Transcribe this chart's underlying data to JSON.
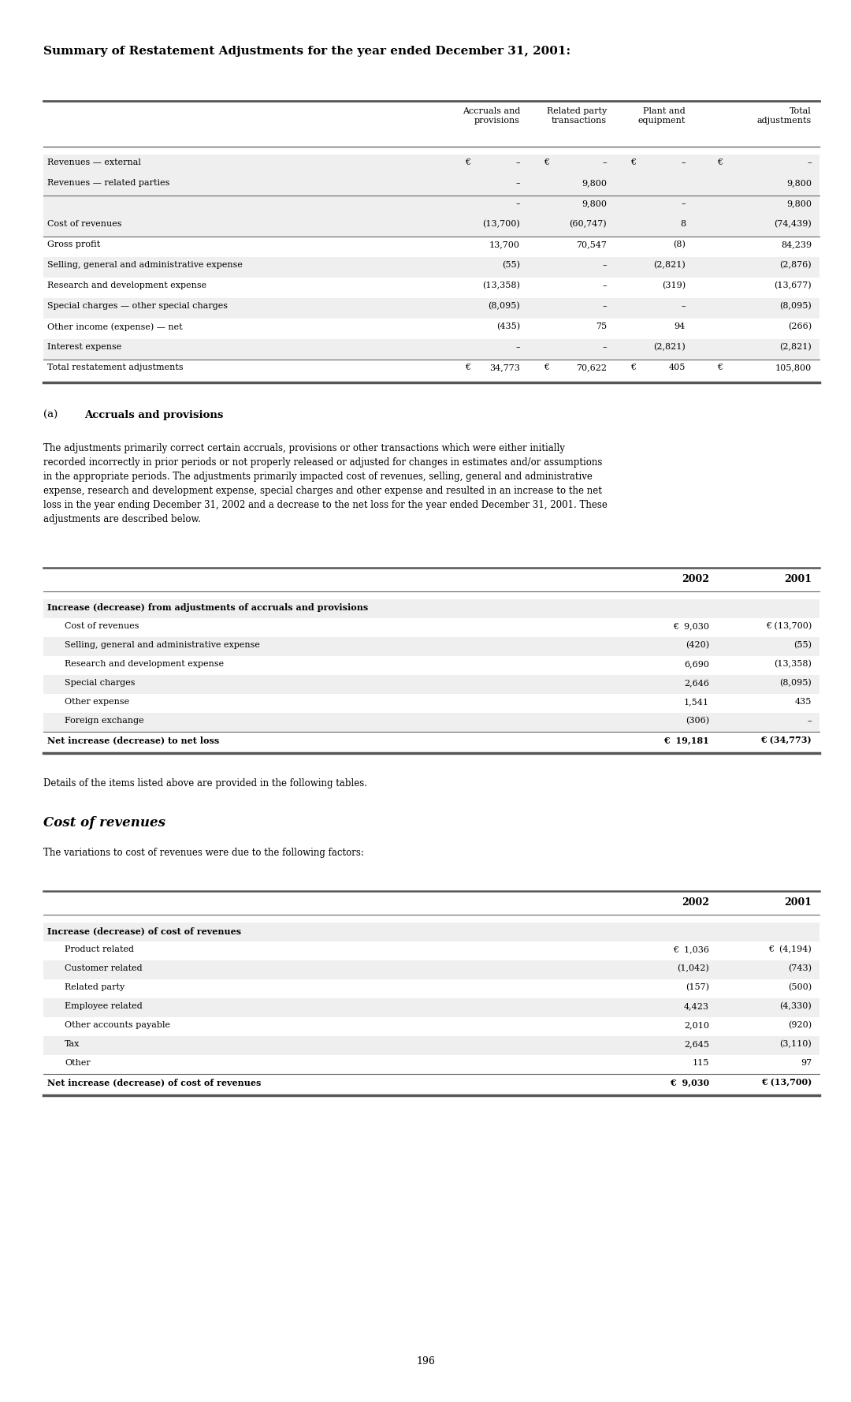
{
  "title": "Summary of Restatement Adjustments for the year ended December 31, 2001:",
  "bg_color": "#ffffff",
  "table1_headers": [
    "",
    "Accruals and\nprovisions",
    "Related party\ntransactions",
    "Plant and\nequipment",
    "Total\nadjustments"
  ],
  "table1_rows": [
    [
      "Revenues — external",
      "€",
      "–",
      "€",
      "–",
      "€",
      "–",
      "€",
      "–"
    ],
    [
      "Revenues — related parties",
      "",
      "–",
      "",
      "9,800",
      "",
      "",
      "",
      "9,800"
    ],
    [
      "",
      "",
      "–",
      "",
      "9,800",
      "",
      "–",
      "",
      "9,800"
    ],
    [
      "Cost of revenues",
      "",
      "(13,700)",
      "",
      "(60,747)",
      "",
      "8",
      "",
      "(74,439)"
    ],
    [
      "Gross profit",
      "",
      "13,700",
      "",
      "70,547",
      "",
      "(8)",
      "",
      "84,239"
    ],
    [
      "Selling, general and administrative expense",
      "",
      "(55)",
      "",
      "–",
      "",
      "(2,821)",
      "",
      "(2,876)"
    ],
    [
      "Research and development expense",
      "",
      "(13,358)",
      "",
      "–",
      "",
      "(319)",
      "",
      "(13,677)"
    ],
    [
      "Special charges — other special charges",
      "",
      "(8,095)",
      "",
      "–",
      "",
      "–",
      "",
      "(8,095)"
    ],
    [
      "Other income (expense) — net",
      "",
      "(435)",
      "",
      "75",
      "",
      "94",
      "",
      "(266)"
    ],
    [
      "Interest expense",
      "",
      "–",
      "",
      "–",
      "",
      "(2,821)",
      "",
      "(2,821)"
    ],
    [
      "Total restatement adjustments",
      "€",
      "34,773",
      "€",
      "70,622",
      "€",
      "405",
      "€",
      "105,800"
    ]
  ],
  "table1_shaded_rows": [
    0,
    1,
    2,
    3,
    5,
    7,
    9
  ],
  "table1_separator_after": [
    1,
    3
  ],
  "table1_total_row": 10,
  "section_a_label": "(a)",
  "section_a_title": "Accruals and provisions",
  "section_a_body": "The adjustments primarily correct certain accruals, provisions or other transactions which were either initially recorded incorrectly in prior periods or not properly released or adjusted for changes in estimates and/or assumptions in the appropriate periods. The adjustments primarily impacted cost of revenues, selling, general and administrative expense, research and development expense, special charges and other expense and resulted in an increase to the net loss in the year ending December 31, 2002 and a decrease to the net loss for the year ended December 31, 2001. These adjustments are described below.",
  "table2_headers": [
    "",
    "2002",
    "2001"
  ],
  "table2_rows": [
    [
      "Increase (decrease) from adjustments of accruals and provisions",
      "",
      ""
    ],
    [
      "Cost of revenues",
      "€  9,030",
      "€ (13,700)"
    ],
    [
      "Selling, general and administrative expense",
      "(420)",
      "(55)"
    ],
    [
      "Research and development expense",
      "6,690",
      "(13,358)"
    ],
    [
      "Special charges",
      "2,646",
      "(8,095)"
    ],
    [
      "Other expense",
      "1,541",
      "435"
    ],
    [
      "Foreign exchange",
      "(306)",
      "–"
    ],
    [
      "Net increase (decrease) to net loss",
      "€  19,181",
      "€ (34,773)"
    ]
  ],
  "table2_bold_rows": [
    0,
    7
  ],
  "table2_shaded_rows": [
    0,
    2,
    4,
    6
  ],
  "table2_indented_rows": [
    1,
    2,
    3,
    4,
    5,
    6
  ],
  "details_text": "Details of the items listed above are provided in the following tables.",
  "cost_revenues_title": "Cost of revenues",
  "cost_revenues_body": "The variations to cost of revenues were due to the following factors:",
  "table3_headers": [
    "",
    "2002",
    "2001"
  ],
  "table3_rows": [
    [
      "Increase (decrease) of cost of revenues",
      "",
      ""
    ],
    [
      "Product related",
      "€  1,036",
      "€  (4,194)"
    ],
    [
      "Customer related",
      "(1,042)",
      "(743)"
    ],
    [
      "Related party",
      "(157)",
      "(500)"
    ],
    [
      "Employee related",
      "4,423",
      "(4,330)"
    ],
    [
      "Other accounts payable",
      "2,010",
      "(920)"
    ],
    [
      "Tax",
      "2,645",
      "(3,110)"
    ],
    [
      "Other",
      "115",
      "97"
    ],
    [
      "Net increase (decrease) of cost of revenues",
      "€  9,030",
      "€ (13,700)"
    ]
  ],
  "table3_bold_rows": [
    0,
    8
  ],
  "table3_shaded_rows": [
    0,
    2,
    4,
    6
  ],
  "table3_indented_rows": [
    1,
    2,
    3,
    4,
    5,
    6,
    7
  ],
  "page_number": "196",
  "font_size_title": 11,
  "font_size_body": 8.5,
  "font_size_table": 8,
  "font_size_header": 8,
  "font_size_page": 9
}
